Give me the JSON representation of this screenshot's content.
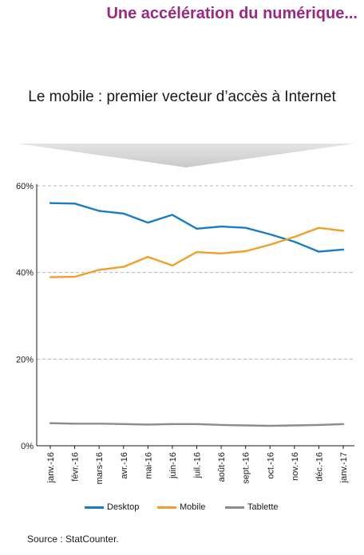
{
  "heading": "Une accélération du numérique...",
  "source": "Source : StatCounter.",
  "chart_data": {
    "type": "line",
    "title": "Le mobile : premier vecteur d’accès à Internet",
    "xlabel": "",
    "ylabel": "",
    "ylim": [
      0,
      60
    ],
    "yticks": [
      "0%",
      "20%",
      "40%",
      "60%"
    ],
    "grid": true,
    "legend_placement": "bottom",
    "categories": [
      "janv.-16",
      "févr.-16",
      "mars-16",
      "avr.-16",
      "mai-16",
      "juin-16",
      "juil.-16",
      "août-16",
      "sept.-16",
      "oct.-16",
      "nov.-16",
      "déc.-16",
      "janv.-17"
    ],
    "series": [
      {
        "name": "Desktop",
        "color": "#1b7dc1",
        "values": [
          56.0,
          55.9,
          54.2,
          53.6,
          51.5,
          53.3,
          50.1,
          50.6,
          50.3,
          48.8,
          47.1,
          44.8,
          45.3
        ]
      },
      {
        "name": "Mobile",
        "color": "#f0a02a",
        "values": [
          38.9,
          39.0,
          40.6,
          41.3,
          43.6,
          41.6,
          44.7,
          44.4,
          44.9,
          46.4,
          48.2,
          50.3,
          49.6
        ]
      },
      {
        "name": "Tablette",
        "color": "#8c8c8c",
        "values": [
          5.2,
          5.1,
          5.1,
          5.0,
          4.9,
          5.0,
          5.0,
          4.8,
          4.7,
          4.6,
          4.7,
          4.8,
          5.0
        ]
      }
    ]
  }
}
